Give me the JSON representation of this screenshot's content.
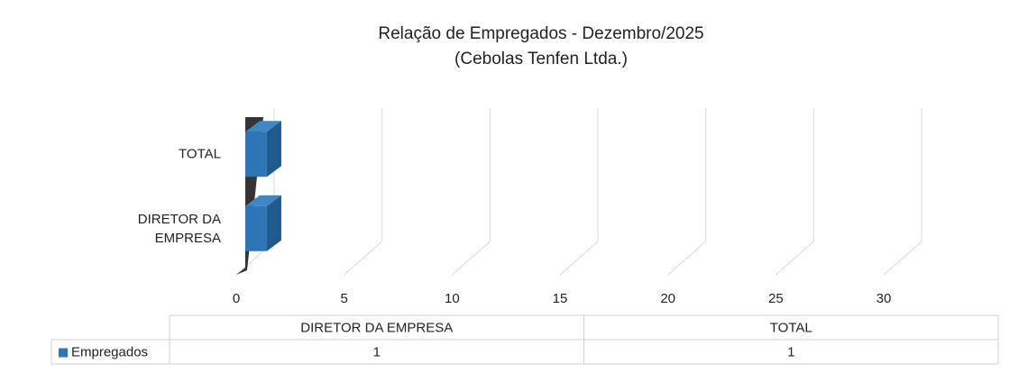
{
  "chart_data": {
    "type": "bar",
    "orientation": "horizontal",
    "three_d": true,
    "title": "Relação de Empregados - Dezembro/2025",
    "subtitle": "(Cebolas Tenfen Ltda.)",
    "categories": [
      "DIRETOR DA EMPRESA",
      "TOTAL"
    ],
    "series": [
      {
        "name": "Empregados",
        "color": "#2e75b6",
        "values": [
          1,
          1
        ]
      }
    ],
    "xlim": [
      0,
      30
    ],
    "xticks": [
      0,
      5,
      10,
      15,
      20,
      25,
      30
    ],
    "grid": true,
    "data_table": true
  }
}
